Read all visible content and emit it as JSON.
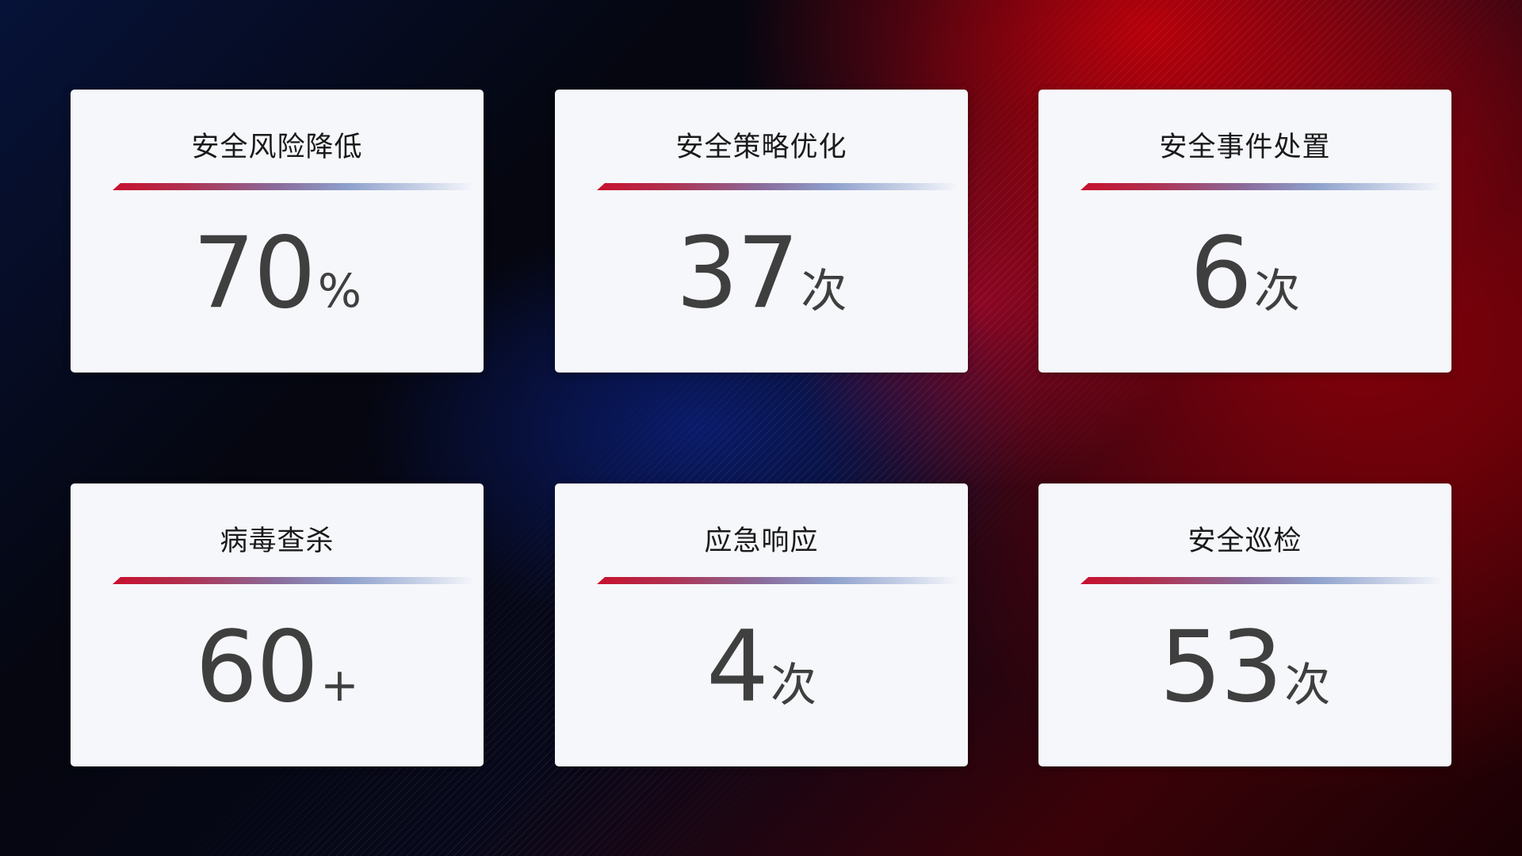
{
  "cards": [
    {
      "title": "安全风险降低",
      "value": "70",
      "unit": "%"
    },
    {
      "title": "安全策略优化",
      "value": "37",
      "unit": "次"
    },
    {
      "title": "安全事件处置",
      "value": "6",
      "unit": "次"
    },
    {
      "title": "病毒查杀",
      "value": "60",
      "unit": "+"
    },
    {
      "title": "应急响应",
      "value": "4",
      "unit": "次"
    },
    {
      "title": "安全巡检",
      "value": "53",
      "unit": "次"
    }
  ],
  "colors": {
    "accent_red": "#c8102e",
    "accent_blue": "#8ea0cc",
    "card_bg": "#f6f7fb",
    "value_text": "#3f3f3f"
  }
}
